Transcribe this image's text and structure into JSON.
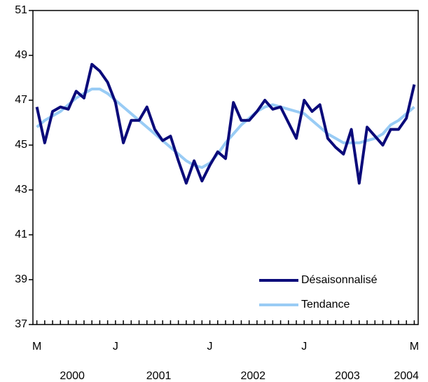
{
  "chart_data": {
    "type": "line",
    "categories": [
      "M",
      null,
      null,
      null,
      null,
      null,
      null,
      null,
      null,
      null,
      "J",
      null,
      null,
      null,
      null,
      null,
      null,
      null,
      null,
      null,
      null,
      null,
      "J",
      null,
      null,
      null,
      null,
      null,
      null,
      null,
      null,
      null,
      null,
      null,
      "J",
      null,
      null,
      null,
      null,
      null,
      null,
      null,
      null,
      null,
      null,
      null,
      null,
      null,
      "M"
    ],
    "years": [
      "2000",
      "2001",
      "2002",
      "2003",
      "2004"
    ],
    "series": [
      {
        "name": "Désaisonnalisé",
        "color": "#0a0a7a",
        "values": [
          46.7,
          45.1,
          46.5,
          46.7,
          46.6,
          47.4,
          47.1,
          48.6,
          48.3,
          47.8,
          46.9,
          45.1,
          46.1,
          46.1,
          46.7,
          45.7,
          45.2,
          45.4,
          44.3,
          43.3,
          44.3,
          43.4,
          44.1,
          44.7,
          44.4,
          46.9,
          46.1,
          46.1,
          46.5,
          47.0,
          46.6,
          46.7,
          46.0,
          45.3,
          47.0,
          46.5,
          46.8,
          45.3,
          44.9,
          44.6,
          45.7,
          43.3,
          45.8,
          45.4,
          45.0,
          45.7,
          45.7,
          46.2,
          47.7
        ]
      },
      {
        "name": "Tendance",
        "color": "#99ccf5",
        "values": [
          45.8,
          46.1,
          46.3,
          46.5,
          46.8,
          47.1,
          47.3,
          47.5,
          47.5,
          47.3,
          47.0,
          46.7,
          46.4,
          46.1,
          45.8,
          45.5,
          45.2,
          44.9,
          44.6,
          44.3,
          44.1,
          44.0,
          44.2,
          44.6,
          45.1,
          45.5,
          45.9,
          46.2,
          46.5,
          46.7,
          46.8,
          46.7,
          46.6,
          46.5,
          46.4,
          46.1,
          45.8,
          45.5,
          45.3,
          45.1,
          45.1,
          45.1,
          45.2,
          45.3,
          45.5,
          45.9,
          46.1,
          46.4,
          46.7
        ]
      }
    ],
    "ylim": [
      37,
      51
    ],
    "yticks": [
      37,
      39,
      41,
      43,
      45,
      47,
      49,
      51
    ],
    "grid": false,
    "legend": "lower right"
  }
}
